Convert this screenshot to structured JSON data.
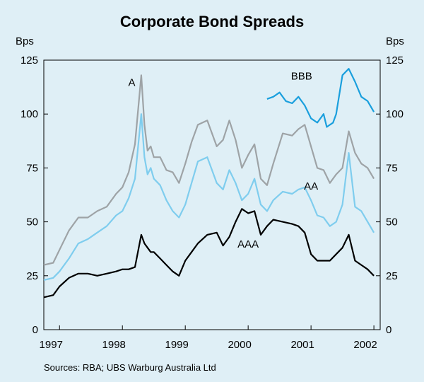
{
  "title": "Corporate Bond Spreads",
  "unit_left": "Bps",
  "unit_right": "Bps",
  "source": "Sources: RBA; UBS Warburg Australia Ltd",
  "colors": {
    "background": "#dfeff6",
    "A": "#9ea3a6",
    "AA": "#7fcdee",
    "AAA": "#000000",
    "BBB": "#1a9fdd"
  },
  "chart_data": {
    "type": "line",
    "title": "Corporate Bond Spreads",
    "xlabel": "",
    "ylabel": "Bps",
    "xlim": [
      1996.75,
      2002.1
    ],
    "ylim": [
      0,
      125
    ],
    "y_ticks": [
      0,
      25,
      50,
      75,
      100,
      125
    ],
    "x_tick_labels": [
      "1997",
      "1998",
      "1999",
      "2000",
      "2001",
      "2002"
    ],
    "x_tick_positions": [
      1997,
      1998,
      1999,
      2000,
      2001,
      2002
    ],
    "grid": false,
    "series": [
      {
        "name": "A",
        "x": [
          1996.75,
          1996.9,
          1997.0,
          1997.15,
          1997.3,
          1997.45,
          1997.6,
          1997.75,
          1997.9,
          1998.0,
          1998.1,
          1998.2,
          1998.3,
          1998.35,
          1998.4,
          1998.45,
          1998.5,
          1998.6,
          1998.7,
          1998.8,
          1998.9,
          1999.0,
          1999.1,
          1999.2,
          1999.35,
          1999.5,
          1999.6,
          1999.7,
          1999.8,
          1999.9,
          2000.0,
          2000.1,
          2000.2,
          2000.3,
          2000.4,
          2000.55,
          2000.7,
          2000.8,
          2000.9,
          2001.0,
          2001.1,
          2001.2,
          2001.3,
          2001.4,
          2001.5,
          2001.6,
          2001.7,
          2001.8,
          2001.9,
          2002.0
        ],
        "values": [
          30,
          31,
          37,
          46,
          52,
          52,
          55,
          57,
          63,
          66,
          73,
          86,
          118,
          95,
          83,
          85,
          80,
          80,
          74,
          73,
          68,
          77,
          87,
          95,
          97,
          85,
          88,
          97,
          88,
          75,
          81,
          86,
          70,
          67,
          77,
          91,
          90,
          93,
          95,
          85,
          75,
          74,
          68,
          72,
          75,
          92,
          82,
          77,
          75,
          70
        ]
      },
      {
        "name": "AA",
        "x": [
          1996.75,
          1996.9,
          1997.0,
          1997.15,
          1997.3,
          1997.45,
          1997.6,
          1997.75,
          1997.9,
          1998.0,
          1998.1,
          1998.2,
          1998.3,
          1998.35,
          1998.4,
          1998.45,
          1998.5,
          1998.6,
          1998.7,
          1998.8,
          1998.9,
          1999.0,
          1999.1,
          1999.2,
          1999.35,
          1999.5,
          1999.6,
          1999.7,
          1999.8,
          1999.9,
          2000.0,
          2000.1,
          2000.2,
          2000.3,
          2000.4,
          2000.55,
          2000.7,
          2000.8,
          2000.9,
          2001.0,
          2001.1,
          2001.2,
          2001.3,
          2001.4,
          2001.5,
          2001.6,
          2001.7,
          2001.8,
          2001.9,
          2002.0
        ],
        "values": [
          23,
          24,
          27,
          33,
          40,
          42,
          45,
          48,
          53,
          55,
          61,
          70,
          100,
          80,
          72,
          75,
          70,
          67,
          60,
          55,
          52,
          58,
          68,
          78,
          80,
          68,
          65,
          74,
          68,
          60,
          63,
          70,
          58,
          55,
          60,
          64,
          63,
          65,
          66,
          60,
          53,
          52,
          48,
          50,
          58,
          82,
          57,
          55,
          50,
          45
        ]
      },
      {
        "name": "AAA",
        "x": [
          1996.75,
          1996.9,
          1997.0,
          1997.15,
          1997.3,
          1997.45,
          1997.6,
          1997.75,
          1997.9,
          1998.0,
          1998.1,
          1998.2,
          1998.3,
          1998.35,
          1998.4,
          1998.45,
          1998.5,
          1998.6,
          1998.7,
          1998.8,
          1998.9,
          1999.0,
          1999.1,
          1999.2,
          1999.35,
          1999.5,
          1999.6,
          1999.7,
          1999.8,
          1999.9,
          2000.0,
          2000.1,
          2000.2,
          2000.3,
          2000.4,
          2000.55,
          2000.7,
          2000.8,
          2000.9,
          2001.0,
          2001.1,
          2001.2,
          2001.3,
          2001.4,
          2001.5,
          2001.6,
          2001.7,
          2001.8,
          2001.9,
          2002.0
        ],
        "values": [
          15,
          16,
          20,
          24,
          26,
          26,
          25,
          26,
          27,
          28,
          28,
          29,
          44,
          40,
          38,
          36,
          36,
          33,
          30,
          27,
          25,
          32,
          36,
          40,
          44,
          45,
          39,
          43,
          50,
          56,
          54,
          55,
          44,
          48,
          51,
          50,
          49,
          48,
          45,
          35,
          32,
          32,
          32,
          35,
          38,
          44,
          32,
          30,
          28,
          25
        ]
      },
      {
        "name": "BBB",
        "x": [
          2000.3,
          2000.4,
          2000.5,
          2000.6,
          2000.7,
          2000.8,
          2000.9,
          2001.0,
          2001.1,
          2001.2,
          2001.25,
          2001.3,
          2001.35,
          2001.4,
          2001.5,
          2001.6,
          2001.7,
          2001.8,
          2001.9,
          2002.0
        ],
        "values": [
          107,
          108,
          110,
          106,
          105,
          108,
          104,
          98,
          96,
          100,
          94,
          95,
          96,
          100,
          118,
          121,
          115,
          108,
          106,
          101
        ]
      }
    ],
    "annotations": [
      {
        "text": "A",
        "x": 1998.15,
        "y": 113
      },
      {
        "text": "BBB",
        "x": 2000.85,
        "y": 116
      },
      {
        "text": "AA",
        "x": 2001.0,
        "y": 65
      },
      {
        "text": "AAA",
        "x": 2000.0,
        "y": 38
      }
    ]
  }
}
